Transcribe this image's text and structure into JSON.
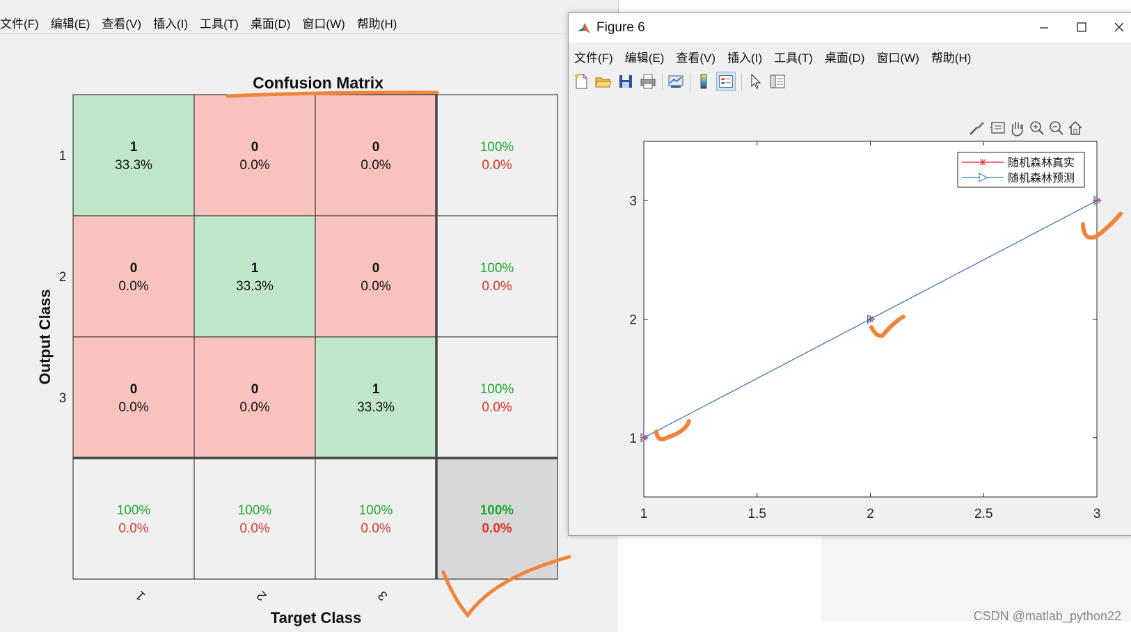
{
  "main_window": {
    "menu": [
      "文件(F)",
      "编辑(E)",
      "查看(V)",
      "插入(I)",
      "工具(T)",
      "桌面(D)",
      "窗口(W)",
      "帮助(H)"
    ]
  },
  "confusion_matrix": {
    "title": "Confusion Matrix",
    "ylabel": "Output Class",
    "xlabel": "Target Class",
    "row_labels": [
      "1",
      "2",
      "3"
    ],
    "col_labels": [
      "1",
      "2",
      "3"
    ],
    "cells": [
      [
        {
          "count": "1",
          "pct": "33.3%",
          "type": "diag"
        },
        {
          "count": "0",
          "pct": "0.0%",
          "type": "off"
        },
        {
          "count": "0",
          "pct": "0.0%",
          "type": "off"
        }
      ],
      [
        {
          "count": "0",
          "pct": "0.0%",
          "type": "off"
        },
        {
          "count": "1",
          "pct": "33.3%",
          "type": "diag"
        },
        {
          "count": "0",
          "pct": "0.0%",
          "type": "off"
        }
      ],
      [
        {
          "count": "0",
          "pct": "0.0%",
          "type": "off"
        },
        {
          "count": "0",
          "pct": "0.0%",
          "type": "off"
        },
        {
          "count": "1",
          "pct": "33.3%",
          "type": "diag"
        }
      ]
    ],
    "row_summary": [
      {
        "correct": "100%",
        "wrong": "0.0%"
      },
      {
        "correct": "100%",
        "wrong": "0.0%"
      },
      {
        "correct": "100%",
        "wrong": "0.0%"
      }
    ],
    "col_summary": [
      {
        "correct": "100%",
        "wrong": "0.0%"
      },
      {
        "correct": "100%",
        "wrong": "0.0%"
      },
      {
        "correct": "100%",
        "wrong": "0.0%"
      }
    ],
    "total": {
      "correct": "100%",
      "wrong": "0.0%"
    },
    "colors": {
      "diag": "#bfe6c6",
      "off": "#f8c3bf",
      "summary": "#f0f0f0",
      "total": "#d8d8d8",
      "green_text": "#1ea82f",
      "red_text": "#d8362b"
    }
  },
  "figure_window": {
    "title": "Figure 6",
    "menu": [
      "文件(F)",
      "编辑(E)",
      "查看(V)",
      "插入(I)",
      "工具(T)",
      "桌面(D)",
      "窗口(W)",
      "帮助(H)"
    ],
    "toolbar_icons": [
      "new-figure-icon",
      "open-file-icon",
      "save-icon",
      "print-icon",
      "link-plot-icon",
      "colorbar-icon",
      "legend-icon",
      "pointer-icon",
      "property-editor-icon"
    ],
    "axes_toolbar_icons": [
      "brush-icon",
      "data-tip-icon",
      "pan-icon",
      "zoom-in-icon",
      "zoom-out-icon",
      "home-icon"
    ]
  },
  "chart_data": {
    "type": "line",
    "title": "",
    "xlabel": "",
    "ylabel": "",
    "xlim": [
      1,
      3
    ],
    "ylim": [
      0.5,
      3.5
    ],
    "x_ticks": [
      "1",
      "1.5",
      "2",
      "2.5",
      "3"
    ],
    "y_ticks": [
      "1",
      "2",
      "3"
    ],
    "x": [
      1,
      2,
      3
    ],
    "series": [
      {
        "name": "随机森林真实",
        "values": [
          1,
          2,
          3
        ],
        "color": "#e8232b",
        "marker": "*"
      },
      {
        "name": "随机森林预测",
        "values": [
          1,
          2,
          3
        ],
        "color": "#1f7fc4",
        "marker": ">"
      }
    ],
    "legend_position": "top-right"
  },
  "watermark": "CSDN @matlab_python22"
}
